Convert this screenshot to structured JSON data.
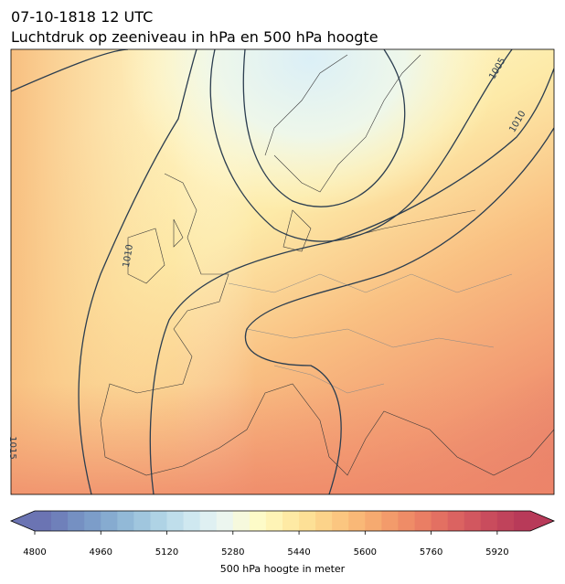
{
  "header": {
    "title": "07-10-1818 12 UTC",
    "subtitle": "Luchtdruk op zeeniveau in hPa en 500 hPa hoogte"
  },
  "map": {
    "contour_labels": [
      "1005",
      "1010",
      "1010",
      "1015"
    ]
  },
  "colorbar": {
    "lim": [
      4800,
      6000
    ],
    "ticks": [
      4800,
      4960,
      5120,
      5280,
      5440,
      5600,
      5760,
      5920
    ],
    "label": "500 hPa hoogte in meter",
    "colors": [
      "#6b74b3",
      "#6f80ba",
      "#7590c2",
      "#7c9dc9",
      "#86abd0",
      "#92b9d7",
      "#a0c6de",
      "#afd3e5",
      "#bfdeeb",
      "#cfe8f0",
      "#dff0f2",
      "#ecf6ef",
      "#f6f9dd",
      "#fdfbc8",
      "#fef4b6",
      "#feeaa4",
      "#fde096",
      "#fcd38a",
      "#fbc680",
      "#f9b877",
      "#f6aa70",
      "#f39b6b",
      "#ef8c67",
      "#ea7e64",
      "#e37062",
      "#db6361",
      "#d2575f",
      "#c94c5d",
      "#c0435b",
      "#b83a59"
    ]
  }
}
